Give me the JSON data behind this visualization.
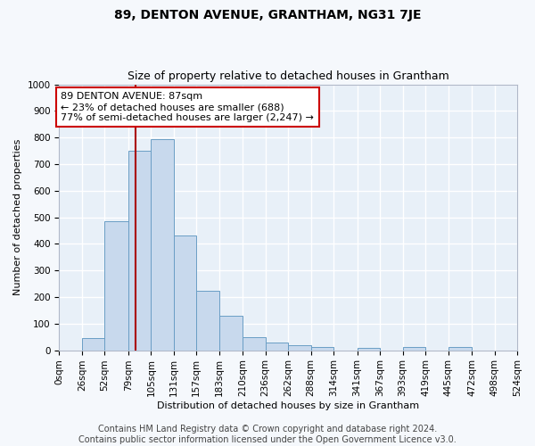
{
  "title": "89, DENTON AVENUE, GRANTHAM, NG31 7JE",
  "subtitle": "Size of property relative to detached houses in Grantham",
  "xlabel": "Distribution of detached houses by size in Grantham",
  "ylabel": "Number of detached properties",
  "bar_color": "#c8d9ed",
  "bar_edge_color": "#6a9ec5",
  "background_color": "#e8f0f8",
  "fig_background_color": "#f5f8fc",
  "grid_color": "#ffffff",
  "bin_edges": [
    0,
    26,
    52,
    79,
    105,
    131,
    157,
    183,
    210,
    236,
    262,
    288,
    314,
    341,
    367,
    393,
    419,
    445,
    472,
    498,
    524
  ],
  "bin_labels": [
    "0sqm",
    "26sqm",
    "52sqm",
    "79sqm",
    "105sqm",
    "131sqm",
    "157sqm",
    "183sqm",
    "210sqm",
    "236sqm",
    "262sqm",
    "288sqm",
    "314sqm",
    "341sqm",
    "367sqm",
    "393sqm",
    "419sqm",
    "445sqm",
    "472sqm",
    "498sqm",
    "524sqm"
  ],
  "bar_heights": [
    0,
    45,
    485,
    750,
    795,
    430,
    225,
    130,
    50,
    30,
    18,
    12,
    0,
    8,
    0,
    12,
    0,
    12,
    0,
    0
  ],
  "ylim": [
    0,
    1000
  ],
  "yticks": [
    0,
    100,
    200,
    300,
    400,
    500,
    600,
    700,
    800,
    900,
    1000
  ],
  "property_size": 87,
  "vline_color": "#aa0000",
  "annotation_line1": "89 DENTON AVENUE: 87sqm",
  "annotation_line2": "← 23% of detached houses are smaller (688)",
  "annotation_line3": "77% of semi-detached houses are larger (2,247) →",
  "annotation_box_color": "#ffffff",
  "annotation_box_edge_color": "#cc0000",
  "footer_line1": "Contains HM Land Registry data © Crown copyright and database right 2024.",
  "footer_line2": "Contains public sector information licensed under the Open Government Licence v3.0.",
  "title_fontsize": 10,
  "subtitle_fontsize": 9,
  "axis_label_fontsize": 8,
  "tick_fontsize": 7.5,
  "annotation_fontsize": 8,
  "footer_fontsize": 7
}
